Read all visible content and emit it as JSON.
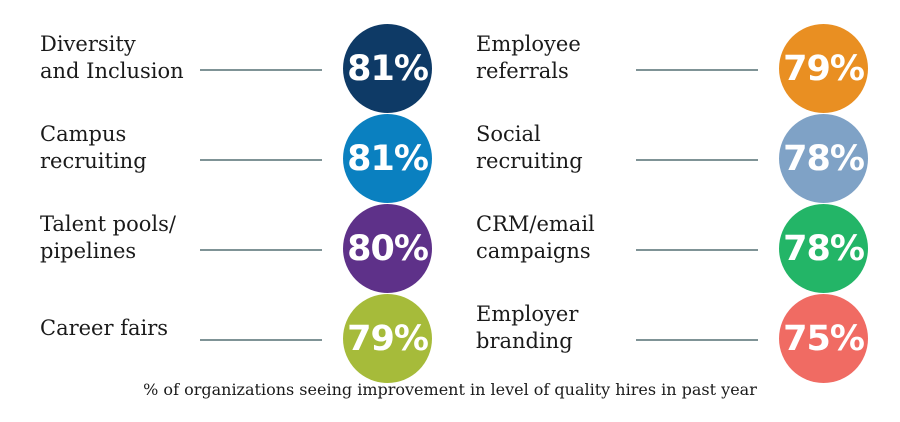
{
  "chart_data": {
    "type": "table",
    "caption": "% of organizations seeing improvement in level of quality hires in past year",
    "items": [
      {
        "label": "Diversity\nand Inclusion",
        "value": 81,
        "display": "81%",
        "color": "#0e3a66",
        "column": "left"
      },
      {
        "label": "Campus\nrecruiting",
        "value": 81,
        "display": "81%",
        "color": "#0a80c0",
        "column": "left"
      },
      {
        "label": "Talent pools/\npipelines",
        "value": 80,
        "display": "80%",
        "color": "#5e3189",
        "column": "left"
      },
      {
        "label": "Career fairs",
        "value": 79,
        "display": "79%",
        "color": "#a6bb3a",
        "column": "left"
      },
      {
        "label": "Employee\nreferrals",
        "value": 79,
        "display": "79%",
        "color": "#e98f22",
        "column": "right"
      },
      {
        "label": "Social\nrecruiting",
        "value": 78,
        "display": "78%",
        "color": "#7fa2c6",
        "column": "right"
      },
      {
        "label": "CRM/email\ncampaigns",
        "value": 78,
        "display": "78%",
        "color": "#23b567",
        "column": "right"
      },
      {
        "label": "Employer\nbranding",
        "value": 75,
        "display": "75%",
        "color": "#f06b63",
        "column": "right"
      }
    ]
  }
}
